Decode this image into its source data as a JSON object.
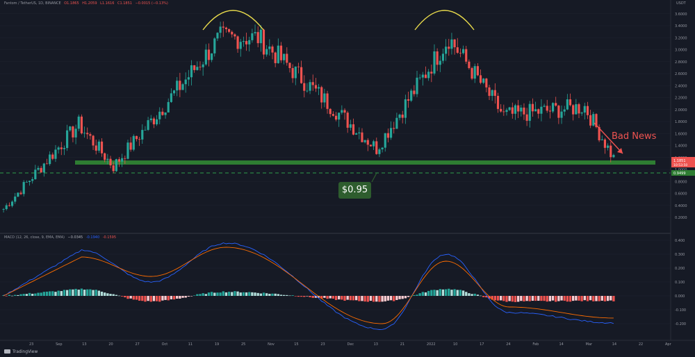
{
  "header": {
    "symbol": "Fantom / TetherUS, 1D, BINANCE",
    "open": "O1.1865",
    "high": "H1.2059",
    "low": "L1.1616",
    "close": "C1.1851",
    "change": "−0.0015 (−0.13%)"
  },
  "macd_header": {
    "label": "MACD (12, 26, close, 9, EMA, EMA)",
    "histogram": "−0.0345",
    "macd": "-0.1940",
    "signal": "-0.1595"
  },
  "price_axis": {
    "currency": "USDT",
    "ticks": [
      "3.6000",
      "3.4000",
      "3.2000",
      "3.0000",
      "2.8000",
      "2.6000",
      "2.4000",
      "2.2000",
      "2.0000",
      "1.8000",
      "1.6000",
      "1.4000",
      "1.2000",
      "1.0000",
      "0.8000",
      "0.6000",
      "0.4000",
      "0.2000"
    ],
    "last_price": "1.1851",
    "countdown": "10:53:50",
    "support_price": "0.9499"
  },
  "macd_axis": {
    "ticks": [
      "0.400",
      "0.300",
      "0.200",
      "0.100",
      "0.000",
      "-0.100",
      "-0.200"
    ]
  },
  "time_axis": {
    "ticks": [
      "23",
      "Sep",
      "13",
      "20",
      "27",
      "Oct",
      "11",
      "19",
      "25",
      "Nov",
      "15",
      "23",
      "Dec",
      "13",
      "21",
      "2022",
      "10",
      "17",
      "24",
      "Feb",
      "14",
      "Mar",
      "14",
      "22",
      "Apr"
    ]
  },
  "annotations": {
    "support_callout": "$0.95",
    "bad_news": "Bad News"
  },
  "brand": {
    "name": "TradingView"
  },
  "colors": {
    "background": "#161a25",
    "bull": "#26a69a",
    "bear": "#ef5350",
    "support_zone": "#2e7d32",
    "arc": "#e6d84b",
    "macd_line": "#2962ff",
    "signal_line": "#ff6d00",
    "hist_pos_strong": "#26a69a",
    "hist_pos_weak": "#b2dfdb",
    "hist_neg_strong": "#ef5350",
    "hist_neg_weak": "#ffcdd2"
  },
  "chart_data": {
    "type": "candlestick",
    "title": "Fantom / TetherUS, 1D, BINANCE",
    "ylabel": "USDT",
    "ylim": [
      0.1,
      3.7
    ],
    "x_range": [
      "2021-08-14",
      "2022-04-04"
    ],
    "key_points": [
      {
        "date": "2021-08-14",
        "price": 0.34
      },
      {
        "date": "2021-09-09",
        "price": 1.75
      },
      {
        "date": "2021-09-21",
        "price": 1.05
      },
      {
        "date": "2021-10-28",
        "price": 3.2
      },
      {
        "date": "2021-11-10",
        "price": 3.2
      },
      {
        "date": "2021-12-21",
        "price": 1.35
      },
      {
        "date": "2022-01-15",
        "price": 3.2
      },
      {
        "date": "2022-02-03",
        "price": 1.9
      },
      {
        "date": "2022-03-03",
        "price": 2.05
      },
      {
        "date": "2022-03-13",
        "price": 1.1851
      }
    ],
    "support_level": 0.95,
    "support_zone": [
      1.1,
      1.16
    ],
    "macd": {
      "params": "12, 26, close, 9, EMA, EMA",
      "ylim": [
        -0.25,
        0.45
      ],
      "key_points": [
        {
          "date": "2021-09-10",
          "macd": 0.33,
          "signal": 0.28
        },
        {
          "date": "2021-10-04",
          "macd": 0.1,
          "signal": 0.14
        },
        {
          "date": "2021-10-30",
          "macd": 0.38,
          "signal": 0.35
        },
        {
          "date": "2021-12-23",
          "macd": -0.24,
          "signal": -0.2
        },
        {
          "date": "2022-01-14",
          "macd": 0.3,
          "signal": 0.25
        },
        {
          "date": "2022-02-05",
          "macd": -0.12,
          "signal": -0.08
        },
        {
          "date": "2022-03-13",
          "macd": -0.194,
          "signal": -0.1595
        }
      ]
    }
  }
}
